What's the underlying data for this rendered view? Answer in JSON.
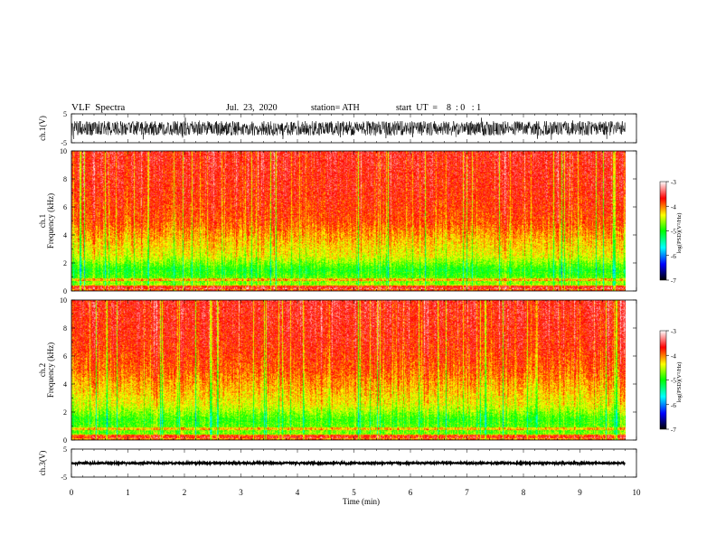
{
  "header": {
    "title": "VLF  Spectra",
    "date": "Jul.  23,  2020",
    "station": "station= ATH",
    "start_ut": "start  UT  =    8  : 0   : 1"
  },
  "colors": {
    "colormap": [
      "#000000",
      "#0000ff",
      "#00ffff",
      "#00ff00",
      "#ffff00",
      "#ff0000",
      "#ffffff"
    ],
    "trace": "#000000",
    "axis": "#000000"
  },
  "chart_data": [
    {
      "type": "line",
      "panel": "ch1-waveform",
      "ylabel": "ch.1(V)",
      "yticks": [
        "5",
        "-5"
      ],
      "ylim": [
        -5,
        5
      ],
      "xlim": [
        0,
        10
      ],
      "x_end": 9.8,
      "amplitude_typical": 2.5
    },
    {
      "type": "heatmap",
      "panel": "ch1-spectrogram",
      "ylabel_line1": "ch.1",
      "ylabel_line2": "Frequency  (kHz)",
      "yticks": [
        "0",
        "2",
        "4",
        "6",
        "8",
        "10"
      ],
      "ylim": [
        0,
        10
      ],
      "xlim": [
        0,
        10
      ],
      "x_end": 9.8,
      "colorbar": {
        "label": "log(PSD)(V²/Hz)",
        "ticks": [
          "-3",
          "-4",
          "-5",
          "-6",
          "-7"
        ],
        "range": [
          -7,
          -3
        ]
      },
      "psd_profile_khz": [
        [
          0,
          -3.7
        ],
        [
          0.5,
          -4.6
        ],
        [
          1.5,
          -5.0
        ],
        [
          2.5,
          -4.4
        ],
        [
          3.5,
          -4.2
        ],
        [
          5,
          -3.85
        ],
        [
          7,
          -3.7
        ],
        [
          10,
          -3.6
        ]
      ]
    },
    {
      "type": "heatmap",
      "panel": "ch2-spectrogram",
      "ylabel_line1": "ch.2",
      "ylabel_line2": "Frequency  (kHz)",
      "yticks": [
        "0",
        "2",
        "4",
        "6",
        "8",
        "10"
      ],
      "ylim": [
        0,
        10
      ],
      "xlim": [
        0,
        10
      ],
      "x_end": 9.8,
      "colorbar": {
        "label": "log(PSD)(V²/Hz)",
        "ticks": [
          "-3",
          "-4",
          "-5",
          "-6",
          "-7"
        ],
        "range": [
          -7,
          -3
        ]
      },
      "psd_profile_khz": [
        [
          0,
          -3.8
        ],
        [
          0.5,
          -4.7
        ],
        [
          1.5,
          -4.9
        ],
        [
          2.5,
          -4.4
        ],
        [
          3.5,
          -4.2
        ],
        [
          5,
          -3.9
        ],
        [
          7,
          -3.7
        ],
        [
          10,
          -3.6
        ]
      ]
    },
    {
      "type": "line",
      "panel": "ch3-waveform",
      "ylabel": "ch.3(V)",
      "yticks": [
        "5",
        "-5"
      ],
      "ylim": [
        -5,
        5
      ],
      "xlim": [
        0,
        10
      ],
      "x_end": 9.8,
      "level": 0,
      "amplitude_typical": 0.3
    }
  ],
  "xaxis": {
    "label": "Time  (min)",
    "ticks": [
      "0",
      "1",
      "2",
      "3",
      "4",
      "5",
      "6",
      "7",
      "8",
      "9",
      "10"
    ],
    "range": [
      0,
      10
    ]
  }
}
